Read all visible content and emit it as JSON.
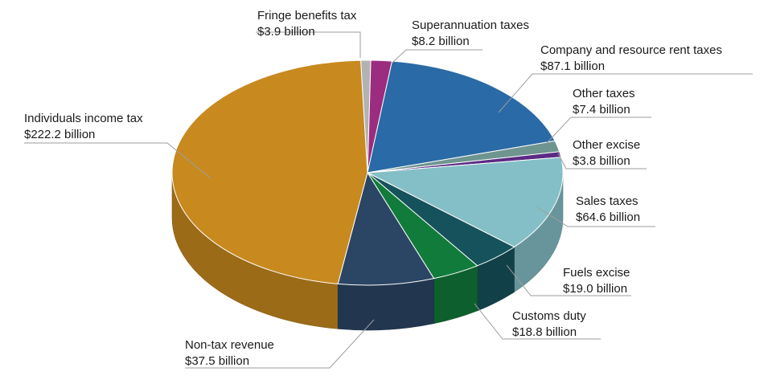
{
  "chart_data": {
    "type": "pie",
    "variant": "3d",
    "title": "",
    "legend": "none",
    "slices": [
      {
        "label": "Fringe benefits tax",
        "value_label": "$3.9 billion",
        "value": 3.9,
        "color": "#b2b2b2"
      },
      {
        "label": "Superannuation taxes",
        "value_label": "$8.2 billion",
        "value": 8.2,
        "color": "#9b2c7f"
      },
      {
        "label": "Company and resource rent taxes",
        "value_label": "$87.1 billion",
        "value": 87.1,
        "color": "#2a6aa6"
      },
      {
        "label": "Other taxes",
        "value_label": "$7.4 billion",
        "value": 7.4,
        "color": "#6f9590"
      },
      {
        "label": "Other excise",
        "value_label": "$3.8 billion",
        "value": 3.8,
        "color": "#5b2b83"
      },
      {
        "label": "Sales taxes",
        "value_label": "$64.6 billion",
        "value": 64.6,
        "color": "#84bfc7"
      },
      {
        "label": "Fuels excise",
        "value_label": "$19.0 billion",
        "value": 19.0,
        "color": "#16525c"
      },
      {
        "label": "Customs duty",
        "value_label": "$18.8 billion",
        "value": 18.8,
        "color": "#117b3b"
      },
      {
        "label": "Non-tax revenue",
        "value_label": "$37.5 billion",
        "value": 37.5,
        "color": "#2b4565"
      },
      {
        "label": "Individuals income tax",
        "value_label": "$222.2 billion",
        "value": 222.2,
        "color": "#c8891f"
      }
    ]
  }
}
